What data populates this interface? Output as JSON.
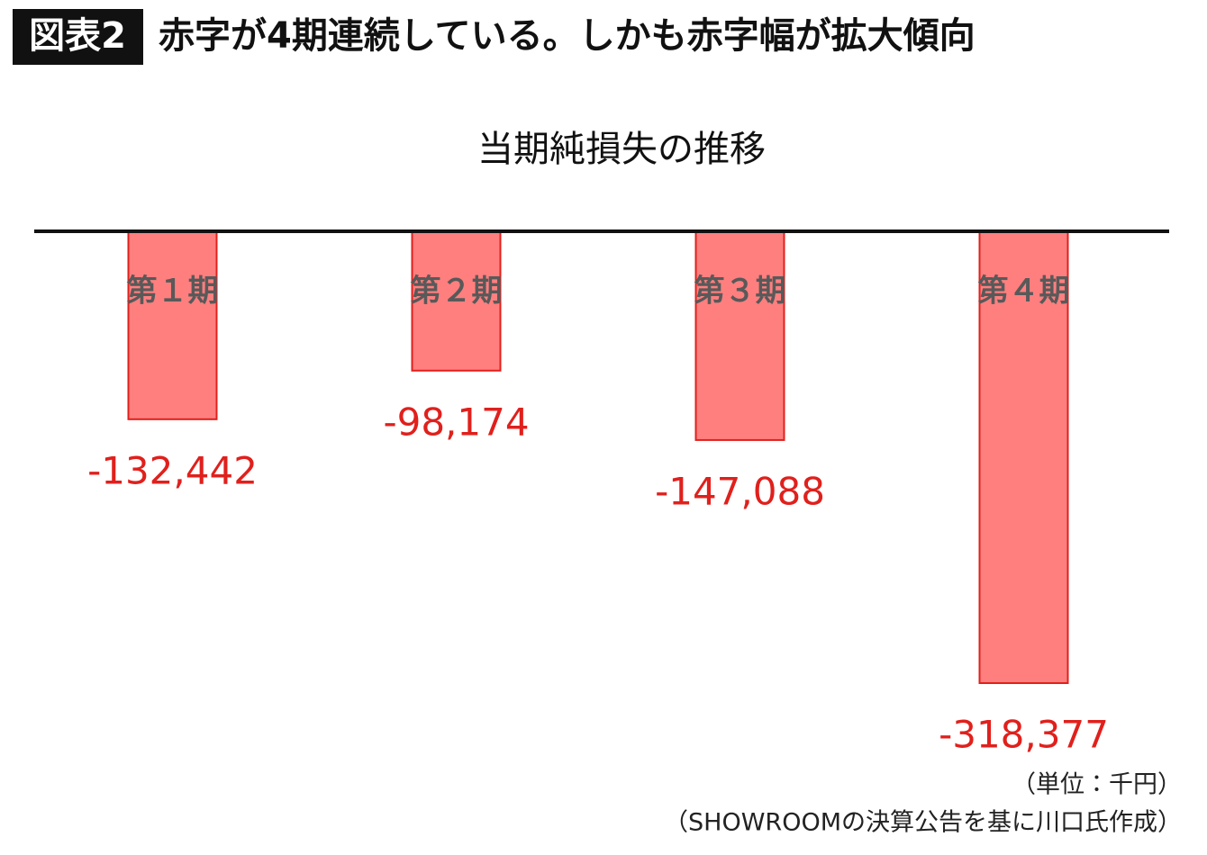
{
  "header": {
    "label": "図表2",
    "title": "赤字が4期連続している。しかも赤字幅が拡大傾向"
  },
  "chart_data": {
    "type": "bar",
    "title": "当期純損失の推移",
    "categories": [
      "第１期",
      "第２期",
      "第３期",
      "第４期"
    ],
    "values": [
      -132442,
      -98174,
      -147088,
      -318377
    ],
    "value_labels": [
      "-132,442",
      "-98,174",
      "-147,088",
      "-318,377"
    ],
    "color": "#ff7f7f",
    "notes": [
      "（単位：千円）",
      "（SHOWROOMの決算公告を基に川口氏作成）"
    ]
  }
}
